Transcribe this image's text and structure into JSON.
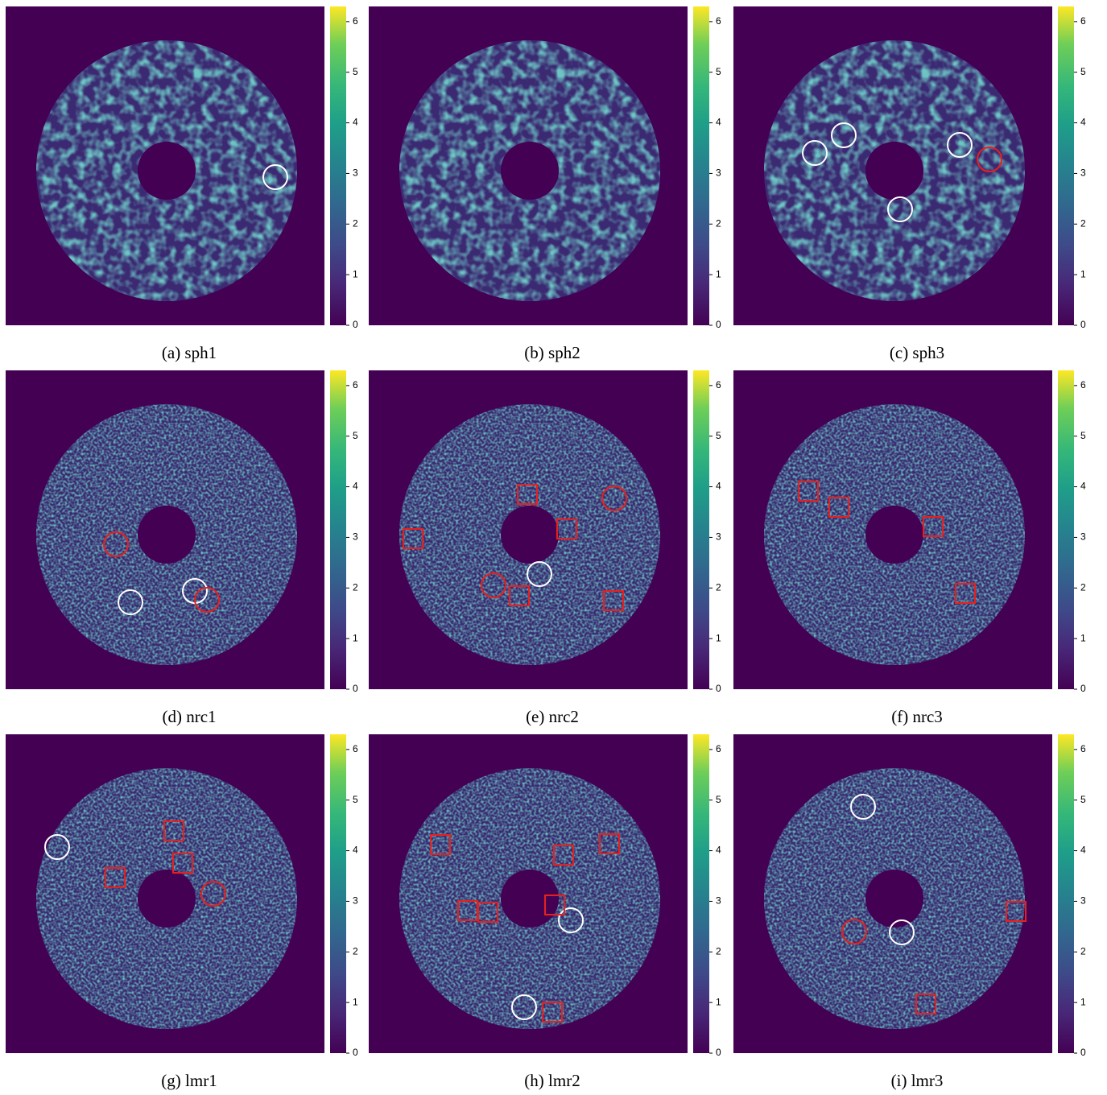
{
  "figure": {
    "colorbar": {
      "clim": [
        0,
        6.3
      ],
      "ticks": [
        0,
        1,
        2,
        3,
        4,
        5,
        6
      ]
    },
    "panels": [
      {
        "caption": "(a) sph1"
      },
      {
        "caption": "(b) sph2"
      },
      {
        "caption": "(c) sph3"
      },
      {
        "caption": "(d) nrc1"
      },
      {
        "caption": "(e) nrc2"
      },
      {
        "caption": "(f) nrc3"
      },
      {
        "caption": "(g) lmr1"
      },
      {
        "caption": "(h) lmr2"
      },
      {
        "caption": "(i) lmr3"
      }
    ]
  }
}
